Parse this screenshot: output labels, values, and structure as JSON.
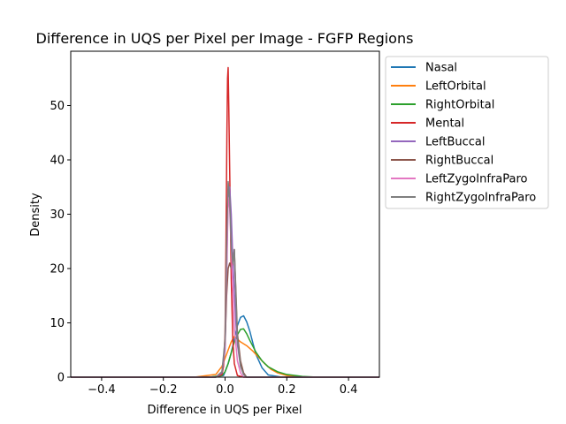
{
  "chart_data": {
    "type": "line",
    "title": "Difference in UQS per Pixel per Image - FGFP Regions",
    "xlabel": "Difference in UQS per Pixel",
    "ylabel": "Density",
    "xlim": [
      -0.5,
      0.5
    ],
    "ylim": [
      0,
      60
    ],
    "xticks": [
      -0.4,
      -0.2,
      0.0,
      0.2,
      0.4
    ],
    "xtick_labels": [
      "−0.4",
      "−0.2",
      "0.0",
      "0.2",
      "0.4"
    ],
    "yticks": [
      0,
      10,
      20,
      30,
      40,
      50
    ],
    "ytick_labels": [
      "0",
      "10",
      "20",
      "30",
      "40",
      "50"
    ],
    "grid": false,
    "legend_position": "outside-right",
    "series": [
      {
        "name": "Nasal",
        "color": "#1f77b4",
        "x": [
          -0.5,
          -0.05,
          -0.005,
          0.0,
          0.01,
          0.02,
          0.03,
          0.04,
          0.05,
          0.06,
          0.07,
          0.08,
          0.09,
          0.1,
          0.12,
          0.14,
          0.18,
          0.25,
          0.5
        ],
        "y": [
          0,
          0,
          0.3,
          1.0,
          2.5,
          4.5,
          7.0,
          9.5,
          11.0,
          11.3,
          10.2,
          8.5,
          6.3,
          4.2,
          1.7,
          0.4,
          0.05,
          0,
          0
        ]
      },
      {
        "name": "LeftOrbital",
        "color": "#ff7f0e",
        "x": [
          -0.5,
          -0.1,
          -0.03,
          -0.01,
          0.0,
          0.01,
          0.02,
          0.03,
          0.04,
          0.05,
          0.07,
          0.09,
          0.11,
          0.13,
          0.15,
          0.17,
          0.2,
          0.25,
          0.3,
          0.5
        ],
        "y": [
          0,
          0,
          0.5,
          2.0,
          3.5,
          5.0,
          6.5,
          7.5,
          7.0,
          6.5,
          5.8,
          4.8,
          3.6,
          2.4,
          1.4,
          0.8,
          0.3,
          0.05,
          0,
          0
        ]
      },
      {
        "name": "RightOrbital",
        "color": "#2ca02c",
        "x": [
          -0.5,
          -0.05,
          -0.01,
          0.0,
          0.01,
          0.02,
          0.03,
          0.04,
          0.05,
          0.06,
          0.07,
          0.08,
          0.1,
          0.12,
          0.14,
          0.17,
          0.2,
          0.25,
          0.3,
          0.5
        ],
        "y": [
          0,
          0,
          0.3,
          1.0,
          2.5,
          4.5,
          6.5,
          7.8,
          8.8,
          8.9,
          8.0,
          6.8,
          4.6,
          3.0,
          1.9,
          1.0,
          0.5,
          0.15,
          0,
          0
        ]
      },
      {
        "name": "Mental",
        "color": "#d62728",
        "x": [
          -0.5,
          -0.03,
          -0.01,
          -0.005,
          0.0,
          0.003,
          0.006,
          0.008,
          0.01,
          0.012,
          0.015,
          0.02,
          0.025,
          0.03,
          0.04,
          0.06,
          0.5
        ],
        "y": [
          0,
          0,
          0.5,
          2.0,
          8.0,
          25.0,
          45.0,
          55.0,
          57.0,
          50.0,
          38.0,
          18.0,
          7.0,
          2.5,
          0.3,
          0,
          0
        ]
      },
      {
        "name": "LeftBuccal",
        "color": "#9467bd",
        "x": [
          -0.5,
          -0.03,
          -0.01,
          0.0,
          0.005,
          0.01,
          0.015,
          0.02,
          0.025,
          0.03,
          0.035,
          0.04,
          0.05,
          0.06,
          0.07,
          0.5
        ],
        "y": [
          0,
          0,
          0.8,
          5.0,
          18.0,
          33.0,
          35.0,
          30.0,
          22.0,
          16.0,
          10.0,
          6.0,
          2.0,
          0.5,
          0,
          0
        ]
      },
      {
        "name": "RightBuccal",
        "color": "#8c564b",
        "x": [
          -0.5,
          -0.03,
          -0.01,
          0.0,
          0.005,
          0.01,
          0.015,
          0.02,
          0.025,
          0.03,
          0.035,
          0.04,
          0.05,
          0.06,
          0.07,
          0.5
        ],
        "y": [
          0,
          0,
          1.0,
          6.0,
          15.0,
          20.0,
          21.0,
          20.0,
          21.0,
          23.5,
          16.0,
          8.0,
          3.0,
          0.8,
          0,
          0
        ]
      },
      {
        "name": "LeftZygoInfraParo",
        "color": "#e377c2",
        "x": [
          -0.5,
          -0.03,
          -0.01,
          0.0,
          0.005,
          0.01,
          0.015,
          0.02,
          0.025,
          0.03,
          0.04,
          0.05,
          0.06,
          0.5
        ],
        "y": [
          0,
          0,
          1.0,
          6.0,
          20.0,
          33.0,
          31.0,
          24.0,
          16.0,
          9.0,
          3.0,
          0.8,
          0,
          0
        ]
      },
      {
        "name": "RightZygoInfraParo",
        "color": "#7f7f7f",
        "x": [
          -0.5,
          -0.03,
          -0.01,
          0.0,
          0.005,
          0.01,
          0.015,
          0.02,
          0.025,
          0.03,
          0.035,
          0.04,
          0.05,
          0.06,
          0.07,
          0.5
        ],
        "y": [
          0,
          0,
          1.0,
          7.0,
          25.0,
          36.0,
          33.0,
          24.0,
          21.0,
          23.5,
          15.0,
          7.0,
          2.0,
          0.5,
          0,
          0
        ]
      }
    ]
  }
}
